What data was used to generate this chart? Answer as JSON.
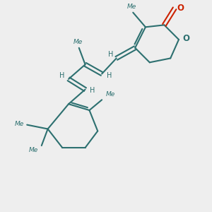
{
  "bg_color": "#eeeeee",
  "bond_color": "#2d7070",
  "o_color": "#cc2200",
  "line_width": 1.5,
  "figsize": [
    3.0,
    3.0
  ],
  "dpi": 100,
  "xlim": [
    0,
    10
  ],
  "ylim": [
    0,
    10
  ]
}
